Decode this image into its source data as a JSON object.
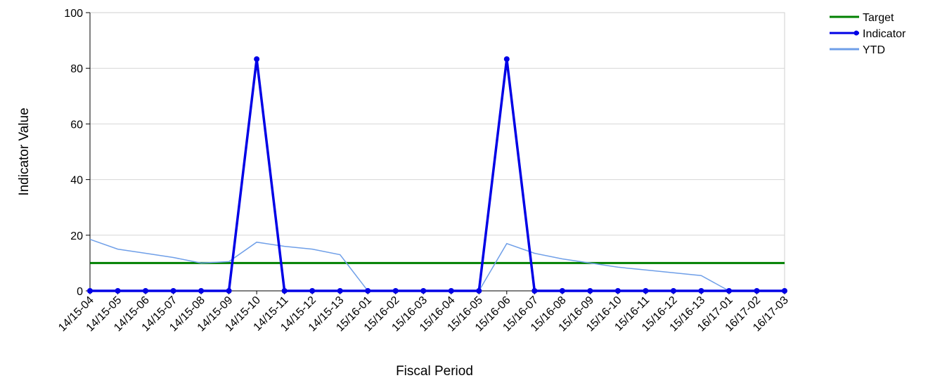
{
  "chart_data": {
    "type": "line",
    "xlabel": "Fiscal Period",
    "ylabel": "Indicator Value",
    "ylim": [
      0,
      100
    ],
    "yticks": [
      "0",
      "20",
      "40",
      "60",
      "80",
      "100"
    ],
    "grid": "horizontal",
    "legend_position": "top-right",
    "categories": [
      "14/15-04",
      "14/15-05",
      "14/15-06",
      "14/15-07",
      "14/15-08",
      "14/15-09",
      "14/15-10",
      "14/15-11",
      "14/15-12",
      "14/15-13",
      "15/16-01",
      "15/16-02",
      "15/16-03",
      "15/16-04",
      "15/16-05",
      "15/16-06",
      "15/16-07",
      "15/16-08",
      "15/16-09",
      "15/16-10",
      "15/16-11",
      "15/16-12",
      "15/16-13",
      "16/17-01",
      "16/17-02",
      "16/17-03"
    ],
    "series": [
      {
        "name": "Target",
        "color": "#008000",
        "markers": false,
        "values": [
          10,
          10,
          10,
          10,
          10,
          10,
          10,
          10,
          10,
          10,
          10,
          10,
          10,
          10,
          10,
          10,
          10,
          10,
          10,
          10,
          10,
          10,
          10,
          10,
          10,
          10
        ]
      },
      {
        "name": "Indicator",
        "color": "#0000e6",
        "markers": true,
        "values": [
          0,
          0,
          0,
          0,
          0,
          0,
          83.3,
          0,
          0,
          0,
          0,
          0,
          0,
          0,
          0,
          83.3,
          0,
          0,
          0,
          0,
          0,
          0,
          0,
          0,
          0,
          0
        ]
      },
      {
        "name": "YTD",
        "color": "#6f9fe8",
        "markers": false,
        "values": [
          18.5,
          15,
          13.5,
          12,
          10,
          10.5,
          17.5,
          16,
          15,
          13,
          0,
          0,
          0,
          0,
          0,
          17,
          13.5,
          11.5,
          10,
          8.5,
          7.5,
          6.5,
          5.5,
          0,
          0,
          0
        ]
      }
    ]
  }
}
